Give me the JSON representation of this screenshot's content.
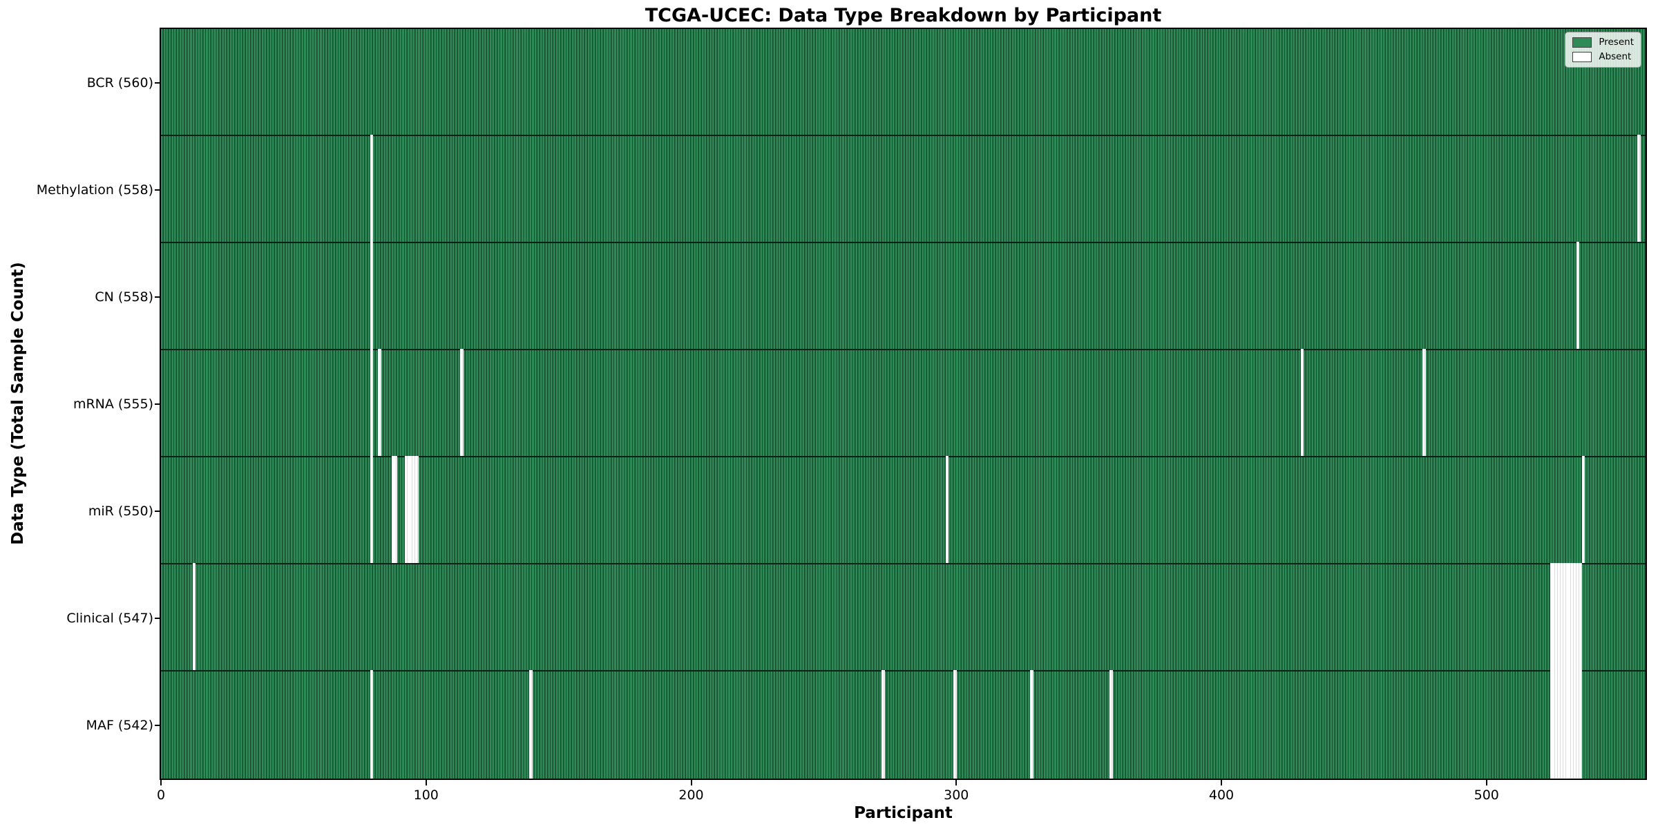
{
  "chart_data": {
    "type": "heatmap",
    "title": "TCGA-UCEC: Data Type Breakdown by Participant",
    "xlabel": "Participant",
    "ylabel": "Data Type (Total Sample Count)",
    "xlim": [
      0,
      560
    ],
    "n_participants": 560,
    "x_ticks": [
      0,
      100,
      200,
      300,
      400,
      500
    ],
    "grid": false,
    "legend": {
      "position": "upper-right",
      "entries": [
        {
          "label": "Present",
          "color": "#2e8b57"
        },
        {
          "label": "Absent",
          "color": "#ffffff"
        }
      ]
    },
    "colors": {
      "present_fill": "#2e8b57",
      "present_edge": "#174b2e",
      "absent_fill": "#ffffff",
      "absent_edge": "#dcdcdc"
    },
    "rows": [
      {
        "label": "BCR (560)",
        "data_type": "BCR",
        "total_samples": 560,
        "absent_participants": []
      },
      {
        "label": "Methylation (558)",
        "data_type": "Methylation",
        "total_samples": 558,
        "absent_participants": [
          79,
          557
        ]
      },
      {
        "label": "CN (558)",
        "data_type": "CN",
        "total_samples": 558,
        "absent_participants": [
          79,
          534
        ]
      },
      {
        "label": "mRNA (555)",
        "data_type": "mRNA",
        "total_samples": 555,
        "absent_participants": [
          79,
          82,
          113,
          430,
          476
        ]
      },
      {
        "label": "miR (550)",
        "data_type": "miR",
        "total_samples": 550,
        "absent_participants": [
          79,
          87,
          88,
          92,
          93,
          94,
          95,
          96,
          296,
          536
        ]
      },
      {
        "label": "Clinical (547)",
        "data_type": "Clinical",
        "total_samples": 547,
        "absent_participants": [
          12,
          524,
          525,
          526,
          527,
          528,
          529,
          530,
          531,
          532,
          533,
          534,
          535
        ]
      },
      {
        "label": "MAF (542)",
        "data_type": "MAF",
        "total_samples": 542,
        "absent_participants": [
          79,
          139,
          272,
          299,
          328,
          358,
          524,
          525,
          526,
          527,
          528,
          529,
          530,
          531,
          532,
          533,
          534,
          535
        ]
      }
    ]
  }
}
